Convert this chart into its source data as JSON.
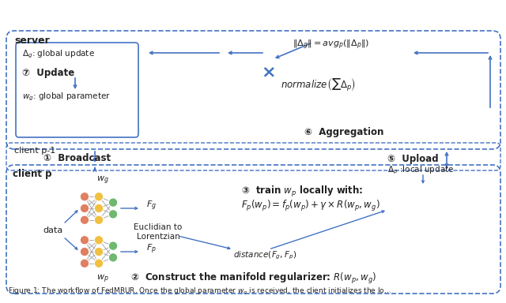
{
  "bg_color": "#ffffff",
  "border_color": "#4472c4",
  "box_color": "#4472c4",
  "arrow_color": "#4472c4",
  "node_colors": {
    "orange": "#f0a040",
    "yellow": "#f0d060",
    "green": "#70b870",
    "red": "#e06060"
  },
  "caption": "Figure 1: The workflow of FedMRUR. Once the global parameter w_g is received, the client initializes the lo...",
  "title_server": "server",
  "title_client_p1": "client p-1",
  "title_client_p": "client p",
  "label_broadcast": "① Broadcast",
  "label_upload": "⑤ Upload",
  "label_aggregation": "⑥ Aggregation",
  "label_update": "⑦ Update",
  "label_construct": "② Construct the manifold regularizer:",
  "label_train": "③ train w_p locally with:",
  "text_delta_g": "Δ_g: global update",
  "text_w_g_param": "w_g: global parameter",
  "text_normalize": "normalize",
  "text_norm_eq": "‖Δ_g‖ = avg_p(‖Δ_p‖)",
  "text_sum_delta": "ΣΔ_p",
  "text_euclidian": "Euclidian to\nLorentzian",
  "text_distance": "distance(F_g, F_p)",
  "text_train_eq": "F_p(w_p) = f_p(w_p) + γ × R(w_p, w_g)",
  "text_regularizer": "R(w_p, w_g)",
  "text_delta_local": "Δ_p :local update",
  "text_data": "data",
  "text_wg_label": "w_g",
  "text_wp_label": "w_p",
  "text_Fg": "F_g",
  "text_Fp": "F_p"
}
